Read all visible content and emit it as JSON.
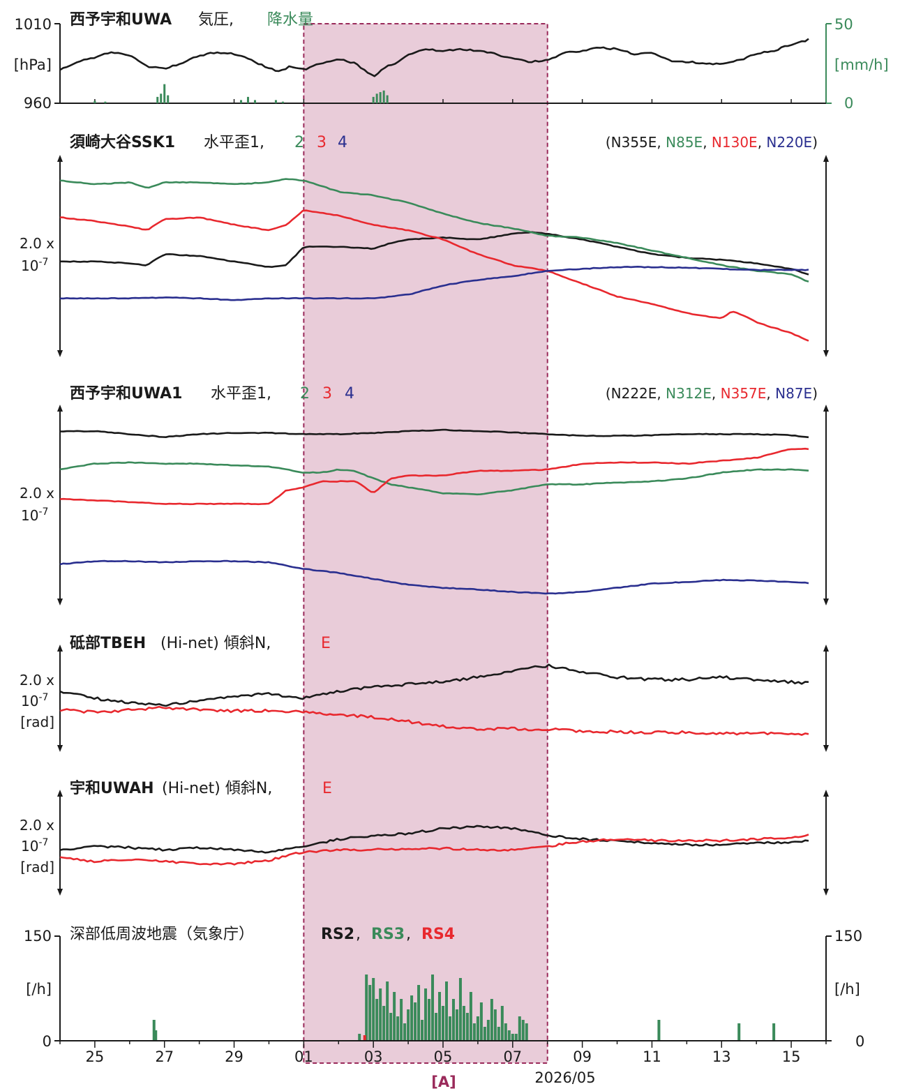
{
  "colors": {
    "black": "#1a1a1a",
    "green": "#3a8a5a",
    "red": "#e8282e",
    "blue": "#2a2f8f",
    "highlight_fill": "#e9ccd9",
    "highlight_border": "#9a2a5a"
  },
  "x_axis": {
    "ticks": [
      {
        "day": 25,
        "label": "25"
      },
      {
        "day": 27,
        "label": "27"
      },
      {
        "day": 29,
        "label": "29"
      },
      {
        "day": 31,
        "label": "01"
      },
      {
        "day": 33,
        "label": "03"
      },
      {
        "day": 35,
        "label": "05"
      },
      {
        "day": 37,
        "label": "07"
      },
      {
        "day": 39,
        "label": "09"
      },
      {
        "day": 41,
        "label": "11"
      },
      {
        "day": 43,
        "label": "13"
      },
      {
        "day": 45,
        "label": "15"
      }
    ],
    "date_label": "2026/05"
  },
  "highlight": {
    "label": "[A]",
    "from_day": 31.0,
    "to_day": 38.0
  },
  "panels": {
    "pressure": {
      "title_bold": "西予宇和UWA",
      "title_rest": " 気圧,",
      "title_rain": "降水量",
      "left_ticks": [
        "1010",
        "960"
      ],
      "left_unit": "[hPa]",
      "right_ticks": [
        "50",
        "0"
      ],
      "right_unit": "[mm/h]"
    },
    "ssk1": {
      "title_bold": "須崎大谷SSK1",
      "title_rest": " 水平歪1,",
      "n2": "2",
      "n3": "3",
      "n4": "4",
      "orient_open": "(",
      "orient_1": "N355E",
      "orient_2": "N85E",
      "orient_3": "N130E",
      "orient_4": "N220E",
      "orient_close": ")",
      "scale_1": "2.0 x",
      "scale_2": "10",
      "scale_exp": "-7"
    },
    "uwa1": {
      "title_bold": "西予宇和UWA1",
      "title_rest": " 水平歪1,",
      "n2": "2",
      "n3": "3",
      "n4": "4",
      "orient_open": "(",
      "orient_1": "N222E",
      "orient_2": "N312E",
      "orient_3": "N357E",
      "orient_4": "N87E",
      "orient_close": ")",
      "scale_1": "2.0 x",
      "scale_2": "10",
      "scale_exp": "-7"
    },
    "tbeh": {
      "title_bold": "砥部TBEH",
      "title_rest": " (Hi-net) 傾斜N,",
      "e_label": "E",
      "scale_1": "2.0 x",
      "scale_2": "10",
      "scale_exp": "-7",
      "scale_unit": "[rad]"
    },
    "uwah": {
      "title_bold": "宇和UWAH",
      "title_rest": " (Hi-net) 傾斜N,",
      "e_label": "E",
      "scale_1": "2.0 x",
      "scale_2": "10",
      "scale_exp": "-7",
      "scale_unit": "[rad]"
    },
    "lfe": {
      "title_rest": "深部低周波地震（気象庁）",
      "rs2": "RS2",
      "rs3": "RS3",
      "rs4": "RS4",
      "left_ticks": [
        "150",
        "0"
      ],
      "right_ticks": [
        "150",
        "0"
      ],
      "left_unit": "[/h]",
      "right_unit": "[/h]"
    }
  },
  "chart_data": [
    {
      "type": "line",
      "title": "西予宇和UWA 気圧, 降水量",
      "x_unit": "day (Apr 24 – May 15, 2026)",
      "ylim": [
        960,
        1010
      ],
      "series": [
        {
          "name": "気圧",
          "color": "black",
          "x": [
            24,
            24.5,
            25,
            25.5,
            26,
            26.5,
            27,
            27.5,
            28,
            28.5,
            29,
            29.5,
            30,
            30.3,
            30.6,
            31,
            31.5,
            32,
            32.5,
            32.8,
            33,
            33.3,
            33.8,
            34,
            34.5,
            35,
            35.5,
            36,
            36.5,
            37,
            37.5,
            38,
            38.5,
            39,
            39.5,
            40,
            40.5,
            41,
            41.5,
            42,
            42.5,
            43,
            43.5,
            44,
            44.5,
            45,
            45.5
          ],
          "y": [
            981,
            986,
            989,
            992,
            990,
            983,
            982,
            985,
            990,
            992,
            991,
            987,
            982,
            980,
            983,
            981,
            985,
            988,
            985,
            980,
            977,
            982,
            987,
            991,
            994,
            993,
            994,
            993,
            991,
            988,
            986,
            987,
            992,
            993,
            995,
            994,
            991,
            992,
            987,
            986,
            985,
            985,
            987,
            991,
            993,
            997,
            1000
          ]
        }
      ],
      "ylim_right": [
        0,
        50
      ],
      "rain": {
        "name": "降水量",
        "color": "green",
        "x": [
          25,
          25.3,
          26.8,
          26.9,
          27.0,
          27.1,
          29.2,
          29.4,
          29.6,
          30.2,
          30.4,
          33.0,
          33.1,
          33.2,
          33.3,
          33.4
        ],
        "y": [
          1.5,
          1,
          4,
          6,
          12,
          5,
          2,
          4,
          2,
          2,
          1,
          4,
          6,
          7,
          8,
          5
        ]
      }
    },
    {
      "type": "line",
      "title": "須崎大谷SSK1 水平歪1, 2, 3, 4",
      "series": [
        {
          "name": "1 (N355E)",
          "color": "black",
          "x": [
            24,
            25,
            26,
            26.5,
            27,
            28,
            29,
            30,
            30.5,
            31,
            32,
            33,
            33.5,
            34,
            35,
            36,
            37,
            37.5,
            38,
            39,
            40,
            41,
            42,
            43,
            44,
            45,
            45.5
          ],
          "y": [
            4.1,
            4.1,
            4.05,
            4.0,
            4.3,
            4.25,
            4.1,
            3.95,
            4.0,
            4.5,
            4.5,
            4.45,
            4.6,
            4.7,
            4.75,
            4.7,
            4.85,
            4.9,
            4.85,
            4.7,
            4.5,
            4.3,
            4.2,
            4.15,
            4.05,
            3.9,
            3.75
          ]
        },
        {
          "name": "2 (N85E)",
          "color": "green",
          "x": [
            24,
            25,
            26,
            26.5,
            27,
            28,
            29,
            30,
            30.5,
            31,
            32,
            33,
            34,
            35,
            36,
            37,
            38,
            39,
            40,
            41,
            42,
            43,
            44,
            45,
            45.5
          ],
          "y": [
            6.3,
            6.2,
            6.25,
            6.1,
            6.25,
            6.25,
            6.2,
            6.25,
            6.35,
            6.3,
            6.0,
            5.9,
            5.7,
            5.4,
            5.15,
            5.0,
            4.8,
            4.75,
            4.6,
            4.4,
            4.2,
            4.0,
            3.85,
            3.75,
            3.55
          ]
        },
        {
          "name": "3 (N130E)",
          "color": "red",
          "x": [
            24,
            25,
            26,
            26.5,
            27,
            28,
            29,
            30,
            30.5,
            31,
            32,
            33,
            34,
            35,
            36,
            37,
            38,
            39,
            40,
            41,
            42,
            43,
            43.3,
            43.7,
            44,
            45,
            45.5
          ],
          "y": [
            5.3,
            5.2,
            5.05,
            4.95,
            5.25,
            5.3,
            5.1,
            4.95,
            5.1,
            5.5,
            5.35,
            5.1,
            4.95,
            4.7,
            4.3,
            4.0,
            3.85,
            3.5,
            3.15,
            2.95,
            2.7,
            2.55,
            2.75,
            2.6,
            2.45,
            2.15,
            1.95
          ]
        },
        {
          "name": "4 (N220E)",
          "color": "blue",
          "x": [
            24,
            25,
            26,
            27,
            28,
            29,
            30,
            31,
            32,
            33,
            34,
            35,
            36,
            37,
            38,
            39,
            40,
            41,
            42,
            43,
            44,
            45,
            45.5
          ],
          "y": [
            3.1,
            3.1,
            3.1,
            3.12,
            3.1,
            3.05,
            3.1,
            3.1,
            3.1,
            3.1,
            3.2,
            3.45,
            3.6,
            3.7,
            3.85,
            3.9,
            3.95,
            3.95,
            3.93,
            3.9,
            3.87,
            3.87,
            3.87
          ]
        }
      ]
    },
    {
      "type": "line",
      "title": "西予宇和UWA1 水平歪1, 2, 3, 4",
      "series": [
        {
          "name": "1 (N222E)",
          "color": "black",
          "x": [
            24,
            25,
            26,
            27,
            28,
            29,
            30,
            31,
            32,
            33,
            34,
            35,
            36,
            37,
            38,
            39,
            40,
            41,
            42,
            43,
            44,
            45,
            45.5
          ],
          "y": [
            5.85,
            5.85,
            5.8,
            5.75,
            5.8,
            5.82,
            5.82,
            5.8,
            5.8,
            5.82,
            5.85,
            5.87,
            5.85,
            5.83,
            5.8,
            5.77,
            5.77,
            5.78,
            5.8,
            5.8,
            5.8,
            5.78,
            5.75
          ]
        },
        {
          "name": "2 (N312E)",
          "color": "green",
          "x": [
            24,
            25,
            26,
            27,
            28,
            29,
            30,
            30.5,
            31,
            31.5,
            32,
            32.5,
            33,
            33.5,
            34,
            35,
            36,
            37,
            38,
            39,
            40,
            41,
            42,
            43,
            44,
            45,
            45.5
          ],
          "y": [
            5.2,
            5.3,
            5.32,
            5.3,
            5.3,
            5.27,
            5.25,
            5.2,
            5.15,
            5.15,
            5.2,
            5.17,
            5.05,
            4.95,
            4.9,
            4.8,
            4.78,
            4.85,
            4.95,
            4.95,
            4.98,
            5.0,
            5.05,
            5.15,
            5.2,
            5.2,
            5.18
          ]
        },
        {
          "name": "3 (N357E)",
          "color": "red",
          "x": [
            24,
            25,
            26,
            27,
            28,
            29,
            30,
            30.5,
            31,
            31.5,
            32,
            32.5,
            33,
            33.5,
            34,
            35,
            36,
            37,
            38,
            39,
            40,
            41,
            42,
            43,
            44,
            45,
            45.5
          ],
          "y": [
            4.7,
            4.68,
            4.65,
            4.62,
            4.62,
            4.62,
            4.62,
            4.85,
            4.9,
            5.0,
            5.0,
            5.0,
            4.8,
            5.05,
            5.1,
            5.1,
            5.18,
            5.18,
            5.2,
            5.3,
            5.32,
            5.32,
            5.3,
            5.35,
            5.4,
            5.55,
            5.55
          ]
        },
        {
          "name": "4 (N87E)",
          "color": "blue",
          "x": [
            24,
            25,
            26,
            27,
            28,
            29,
            30,
            31,
            32,
            33,
            34,
            35,
            36,
            37,
            38,
            39,
            40,
            41,
            42,
            43,
            44,
            45,
            45.5
          ],
          "y": [
            3.6,
            3.65,
            3.65,
            3.63,
            3.65,
            3.65,
            3.63,
            3.52,
            3.45,
            3.35,
            3.25,
            3.2,
            3.17,
            3.13,
            3.1,
            3.13,
            3.2,
            3.27,
            3.3,
            3.33,
            3.32,
            3.3,
            3.28
          ]
        }
      ]
    },
    {
      "type": "line",
      "title": "砥部TBEH (Hi-net) 傾斜N, E",
      "series": [
        {
          "name": "N",
          "color": "black",
          "x": [
            24,
            25,
            26,
            27,
            28,
            29,
            30,
            31,
            32,
            33,
            34,
            35,
            36,
            37,
            38,
            39,
            40,
            41,
            42,
            43,
            44,
            45,
            45.5
          ],
          "y": [
            3.8,
            3.65,
            3.55,
            3.5,
            3.6,
            3.7,
            3.75,
            3.65,
            3.8,
            3.9,
            3.95,
            4.0,
            4.1,
            4.25,
            4.35,
            4.2,
            4.1,
            4.05,
            4.05,
            4.1,
            4.05,
            4.0,
            3.98
          ]
        },
        {
          "name": "E",
          "color": "red",
          "x": [
            24,
            25,
            26,
            27,
            28,
            29,
            30,
            31,
            32,
            33,
            34,
            35,
            36,
            37,
            38,
            39,
            40,
            41,
            42,
            43,
            44,
            45,
            45.5
          ],
          "y": [
            3.4,
            3.35,
            3.4,
            3.45,
            3.4,
            3.38,
            3.38,
            3.35,
            3.3,
            3.25,
            3.15,
            3.05,
            3.0,
            3.0,
            2.98,
            2.95,
            2.93,
            2.92,
            2.92,
            2.9,
            2.9,
            2.88,
            2.9
          ]
        }
      ]
    },
    {
      "type": "line",
      "title": "宇和UWAH (Hi-net) 傾斜N, E",
      "series": [
        {
          "name": "N",
          "color": "black",
          "x": [
            24,
            25,
            26,
            27,
            28,
            29,
            30,
            31,
            32,
            33,
            34,
            35,
            36,
            37,
            38,
            39,
            40,
            41,
            42,
            43,
            44,
            45,
            45.5
          ],
          "y": [
            3.65,
            3.7,
            3.68,
            3.65,
            3.68,
            3.65,
            3.62,
            3.7,
            3.8,
            3.85,
            3.88,
            3.95,
            3.98,
            3.95,
            3.85,
            3.8,
            3.78,
            3.75,
            3.72,
            3.72,
            3.75,
            3.75,
            3.78
          ]
        },
        {
          "name": "E",
          "color": "red",
          "x": [
            24,
            25,
            26,
            27,
            28,
            29,
            30,
            31,
            32,
            33,
            34,
            35,
            36,
            37,
            38,
            39,
            40,
            41,
            42,
            43,
            44,
            45,
            45.5
          ],
          "y": [
            3.55,
            3.48,
            3.52,
            3.48,
            3.45,
            3.45,
            3.5,
            3.62,
            3.65,
            3.65,
            3.67,
            3.67,
            3.65,
            3.65,
            3.7,
            3.77,
            3.8,
            3.78,
            3.78,
            3.78,
            3.8,
            3.82,
            3.85
          ]
        }
      ]
    },
    {
      "type": "bar",
      "title": "深部低周波地震（気象庁） RS2, RS3, RS4",
      "ylim": [
        0,
        150
      ],
      "series": [
        {
          "name": "RS3",
          "color": "green",
          "x": [
            26.7,
            26.75,
            32.6,
            32.8,
            32.9,
            33.0,
            33.1,
            33.2,
            33.3,
            33.4,
            33.5,
            33.6,
            33.7,
            33.8,
            33.9,
            34.0,
            34.1,
            34.2,
            34.3,
            34.4,
            34.5,
            34.6,
            34.7,
            34.8,
            34.9,
            35.0,
            35.1,
            35.2,
            35.3,
            35.4,
            35.5,
            35.6,
            35.7,
            35.8,
            35.9,
            36.0,
            36.1,
            36.2,
            36.3,
            36.4,
            36.5,
            36.6,
            36.7,
            36.8,
            36.9,
            37.0,
            37.1,
            37.2,
            37.3,
            37.4,
            41.2,
            43.5,
            44.5
          ],
          "y": [
            30,
            15,
            10,
            95,
            80,
            90,
            60,
            75,
            50,
            85,
            40,
            70,
            35,
            60,
            25,
            45,
            65,
            55,
            80,
            30,
            75,
            60,
            95,
            40,
            70,
            50,
            85,
            35,
            60,
            45,
            90,
            50,
            40,
            70,
            25,
            35,
            55,
            20,
            30,
            60,
            45,
            20,
            50,
            25,
            15,
            10,
            10,
            35,
            30,
            25,
            30,
            25,
            25
          ]
        },
        {
          "name": "RS4",
          "color": "red",
          "x": [
            32.75
          ],
          "y": [
            8
          ]
        }
      ]
    }
  ]
}
